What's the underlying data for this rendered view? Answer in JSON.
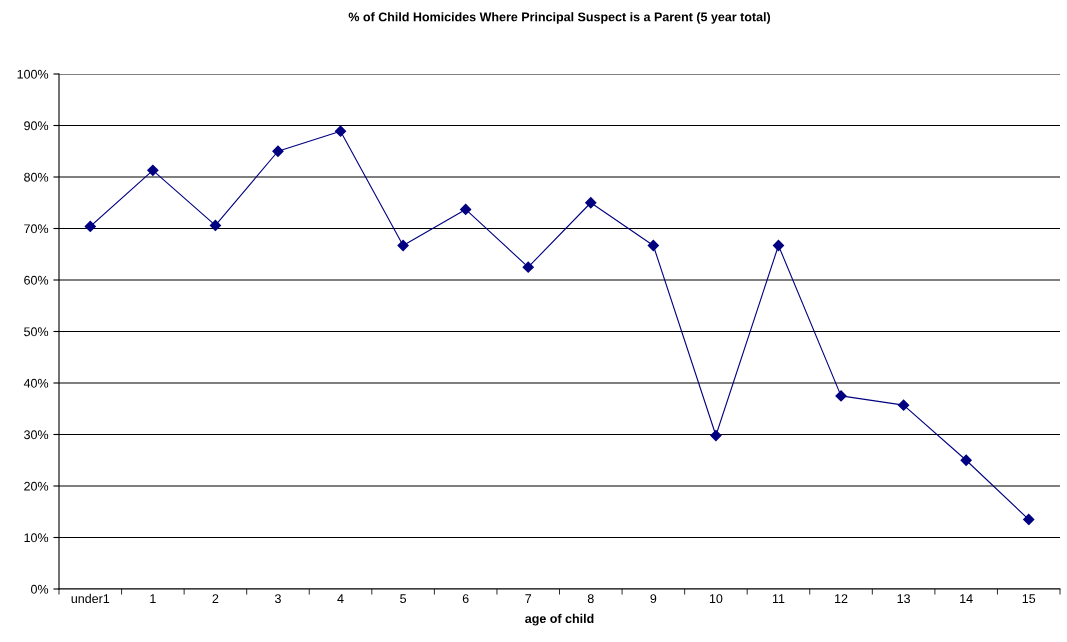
{
  "chart_data": {
    "type": "line",
    "title": "% of Child Homicides Where Principal Suspect is a Parent (5 year total)",
    "xlabel": "age of child",
    "categories": [
      "under1",
      "1",
      "2",
      "3",
      "4",
      "5",
      "6",
      "7",
      "8",
      "9",
      "10",
      "11",
      "12",
      "13",
      "14",
      "15"
    ],
    "series": [
      {
        "color": "#000080",
        "values": [
          70.4,
          81.3,
          70.6,
          85,
          88.9,
          66.7,
          73.7,
          62.5,
          75,
          66.7,
          29.8,
          66.7,
          37.5,
          35.7,
          25,
          13.5
        ]
      }
    ],
    "ylim": [
      0,
      100
    ],
    "yticks": [
      {
        "value": 0,
        "label": "0%"
      },
      {
        "value": 10,
        "label": "10%"
      },
      {
        "value": 20,
        "label": "20%"
      },
      {
        "value": 30,
        "label": "30%"
      },
      {
        "value": 40,
        "label": "40%"
      },
      {
        "value": 50,
        "label": "50%"
      },
      {
        "value": 60,
        "label": "60%"
      },
      {
        "value": 70,
        "label": "70%"
      },
      {
        "value": 80,
        "label": "80%"
      },
      {
        "value": 90,
        "label": "90%"
      },
      {
        "value": 100,
        "label": "100%"
      }
    ],
    "grid": "y",
    "marker": "diamond",
    "line_style": "solid",
    "legend": false
  }
}
